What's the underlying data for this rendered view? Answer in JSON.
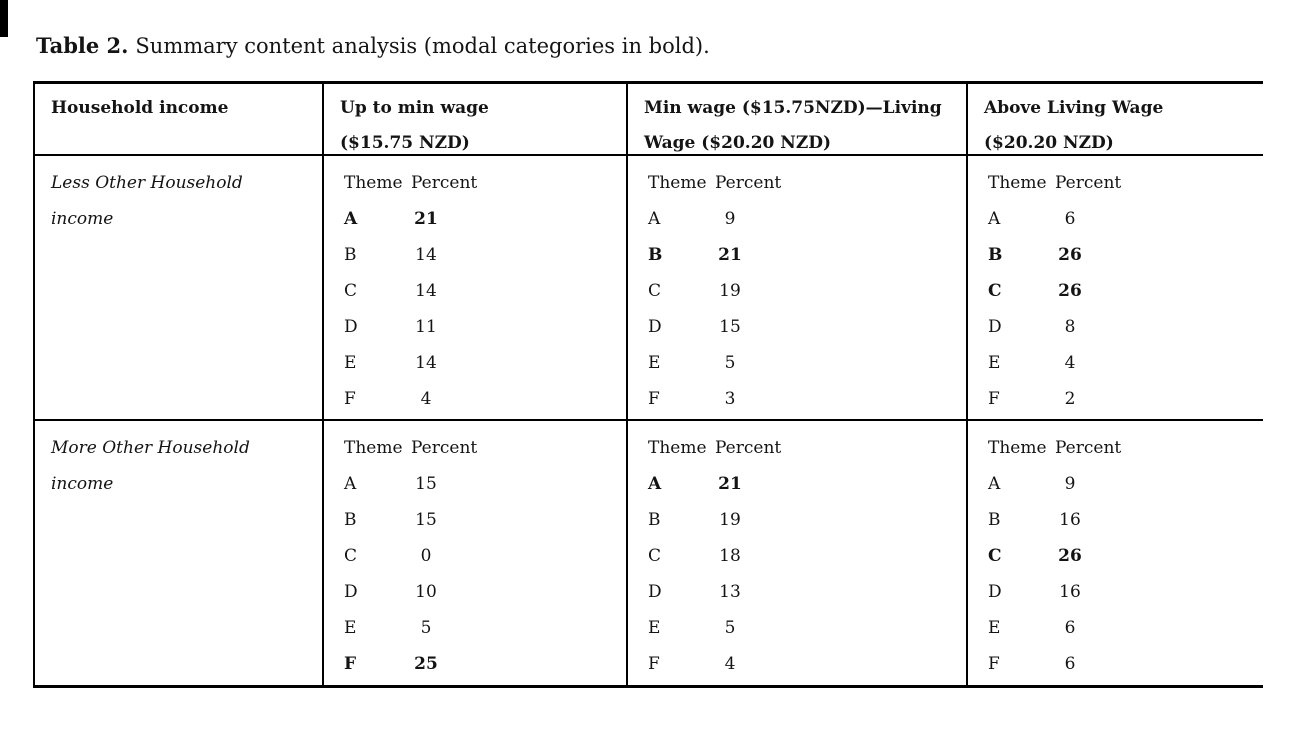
{
  "caption": {
    "label": "Table 2.",
    "text": "Summary content analysis (modal categories in bold)."
  },
  "table": {
    "subheader": {
      "theme": "Theme",
      "percent": "Percent"
    },
    "columns": [
      {
        "line1": "Household income",
        "line2": ""
      },
      {
        "line1": "Up to min wage",
        "line2": "($15.75 NZD)"
      },
      {
        "line1": "Min wage ($15.75NZD)—Living",
        "line2": "Wage ($20.20 NZD)"
      },
      {
        "line1": "Above Living Wage",
        "line2": "($20.20 NZD)"
      }
    ],
    "rows": [
      {
        "label_line1": "Less Other Household",
        "label_line2": "income",
        "cells": [
          {
            "themes": [
              {
                "theme": "A",
                "percent": "21",
                "bold": true
              },
              {
                "theme": "B",
                "percent": "14"
              },
              {
                "theme": "C",
                "percent": "14"
              },
              {
                "theme": "D",
                "percent": "11"
              },
              {
                "theme": "E",
                "percent": "14"
              },
              {
                "theme": "F",
                "percent": "4"
              }
            ]
          },
          {
            "themes": [
              {
                "theme": "A",
                "percent": "9"
              },
              {
                "theme": "B",
                "percent": "21",
                "bold": true
              },
              {
                "theme": "C",
                "percent": "19"
              },
              {
                "theme": "D",
                "percent": "15"
              },
              {
                "theme": "E",
                "percent": "5"
              },
              {
                "theme": "F",
                "percent": "3"
              }
            ]
          },
          {
            "themes": [
              {
                "theme": "A",
                "percent": "6"
              },
              {
                "theme": "B",
                "percent": "26",
                "bold": true
              },
              {
                "theme": "C",
                "percent": "26",
                "bold": true
              },
              {
                "theme": "D",
                "percent": "8"
              },
              {
                "theme": "E",
                "percent": "4"
              },
              {
                "theme": "F",
                "percent": "2"
              }
            ]
          }
        ]
      },
      {
        "label_line1": "More Other Household",
        "label_line2": "income",
        "cells": [
          {
            "themes": [
              {
                "theme": "A",
                "percent": "15"
              },
              {
                "theme": "B",
                "percent": "15"
              },
              {
                "theme": "C",
                "percent": "0"
              },
              {
                "theme": "D",
                "percent": "10"
              },
              {
                "theme": "E",
                "percent": "5"
              },
              {
                "theme": "F",
                "percent": "25",
                "bold": true
              }
            ]
          },
          {
            "themes": [
              {
                "theme": "A",
                "percent": "21",
                "bold": true
              },
              {
                "theme": "B",
                "percent": "19"
              },
              {
                "theme": "C",
                "percent": "18"
              },
              {
                "theme": "D",
                "percent": "13"
              },
              {
                "theme": "E",
                "percent": "5"
              },
              {
                "theme": "F",
                "percent": "4"
              }
            ]
          },
          {
            "themes": [
              {
                "theme": "A",
                "percent": "9"
              },
              {
                "theme": "B",
                "percent": "16"
              },
              {
                "theme": "C",
                "percent": "26",
                "bold": true
              },
              {
                "theme": "D",
                "percent": "16"
              },
              {
                "theme": "E",
                "percent": "6"
              },
              {
                "theme": "F",
                "percent": "6"
              }
            ]
          }
        ]
      }
    ]
  }
}
